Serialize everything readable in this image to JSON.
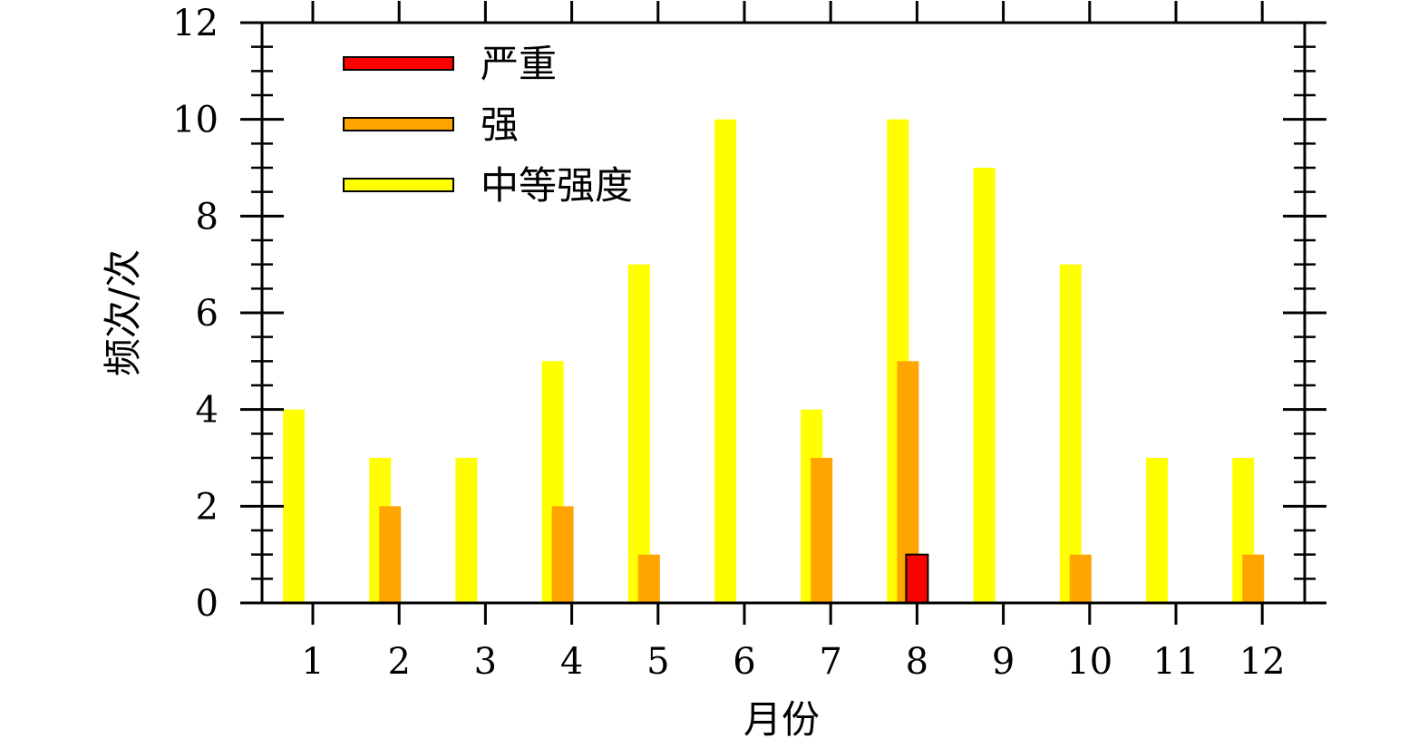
{
  "chart_data": {
    "type": "bar",
    "categories": [
      "1",
      "2",
      "3",
      "4",
      "5",
      "6",
      "7",
      "8",
      "9",
      "10",
      "11",
      "12"
    ],
    "series": [
      {
        "name": "中等强度",
        "color": "#ffff00",
        "values": [
          4,
          3,
          3,
          5,
          7,
          10,
          4,
          10,
          9,
          7,
          3,
          3
        ]
      },
      {
        "name": "强",
        "color": "#ffa500",
        "values": [
          0,
          2,
          0,
          2,
          1,
          0,
          3,
          5,
          0,
          1,
          0,
          1
        ]
      },
      {
        "name": "严重",
        "color": "#ff0000",
        "values": [
          0,
          0,
          0,
          0,
          0,
          0,
          0,
          1,
          0,
          0,
          0,
          0
        ]
      }
    ],
    "legend_order": [
      "严重",
      "强",
      "中等强度"
    ],
    "legend_position": "top-left",
    "xlabel": "月份",
    "ylabel": "频次/次",
    "ylim": [
      0,
      12
    ],
    "yticks": [
      "0",
      "2",
      "4",
      "6",
      "8",
      "10",
      "12"
    ],
    "grid": false
  }
}
